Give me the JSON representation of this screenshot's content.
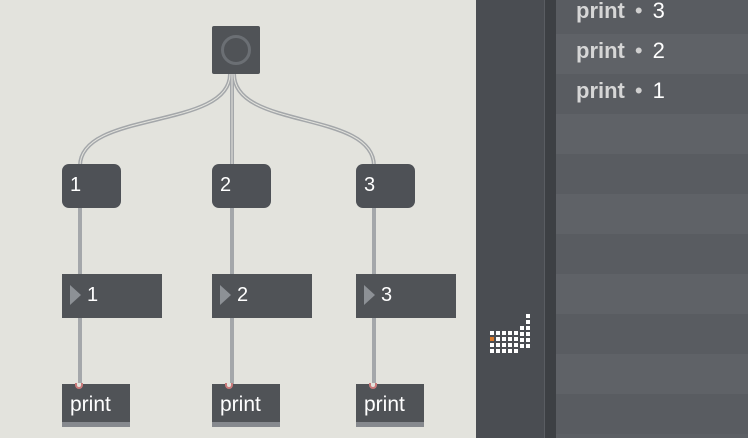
{
  "patcher": {
    "message_boxes": [
      "1",
      "2",
      "3"
    ],
    "number_boxes": [
      "1",
      "2",
      "3"
    ],
    "print_objects": [
      "print",
      "print",
      "print"
    ]
  },
  "console": {
    "rows": [
      {
        "object": "print",
        "separator": "•",
        "value": "3"
      },
      {
        "object": "print",
        "separator": "•",
        "value": "2"
      },
      {
        "object": "print",
        "separator": "•",
        "value": "1"
      }
    ]
  },
  "colors": {
    "canvas": "#e3e3dd",
    "object_fill": "#505357",
    "cable": "#9fa2a5",
    "inlet": "#c97a7a",
    "console_bg": "#5c5f64"
  }
}
